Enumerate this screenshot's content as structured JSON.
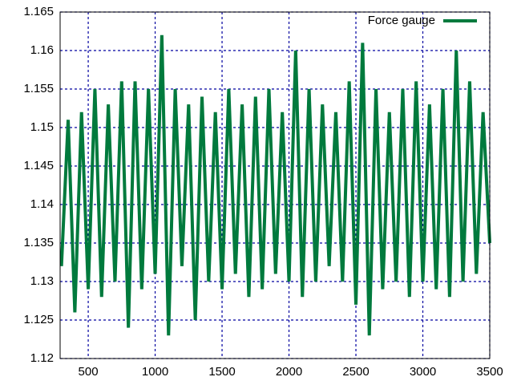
{
  "chart_data": {
    "type": "line",
    "x": [
      300,
      350,
      400,
      450,
      500,
      550,
      600,
      650,
      700,
      750,
      800,
      850,
      900,
      950,
      1000,
      1050,
      1100,
      1150,
      1200,
      1250,
      1300,
      1350,
      1400,
      1450,
      1500,
      1550,
      1600,
      1650,
      1700,
      1750,
      1800,
      1850,
      1900,
      1950,
      2000,
      2050,
      2100,
      2150,
      2200,
      2250,
      2300,
      2350,
      2400,
      2450,
      2500,
      2550,
      2600,
      2650,
      2700,
      2750,
      2800,
      2850,
      2900,
      2950,
      3000,
      3050,
      3100,
      3150,
      3200,
      3250,
      3300,
      3350,
      3400,
      3450,
      3500
    ],
    "series": [
      {
        "name": "Force gauge",
        "color": "#007a3d",
        "values": [
          1.132,
          1.151,
          1.126,
          1.152,
          1.129,
          1.155,
          1.128,
          1.153,
          1.13,
          1.156,
          1.124,
          1.156,
          1.129,
          1.155,
          1.131,
          1.162,
          1.123,
          1.155,
          1.132,
          1.153,
          1.125,
          1.154,
          1.13,
          1.152,
          1.129,
          1.155,
          1.131,
          1.153,
          1.128,
          1.154,
          1.129,
          1.155,
          1.131,
          1.152,
          1.13,
          1.16,
          1.128,
          1.155,
          1.13,
          1.153,
          1.132,
          1.152,
          1.13,
          1.156,
          1.127,
          1.161,
          1.123,
          1.155,
          1.129,
          1.152,
          1.13,
          1.155,
          1.128,
          1.156,
          1.13,
          1.153,
          1.129,
          1.155,
          1.128,
          1.16,
          1.13,
          1.156,
          1.131,
          1.152,
          1.135
        ]
      }
    ],
    "xlim": [
      290,
      3500
    ],
    "ylim": [
      1.12,
      1.165
    ],
    "xticks": [
      500,
      1000,
      1500,
      2000,
      2500,
      3000,
      3500
    ],
    "yticks": [
      1.12,
      1.125,
      1.13,
      1.135,
      1.14,
      1.145,
      1.15,
      1.155,
      1.16,
      1.165
    ],
    "grid": true,
    "legend": "top-right"
  }
}
